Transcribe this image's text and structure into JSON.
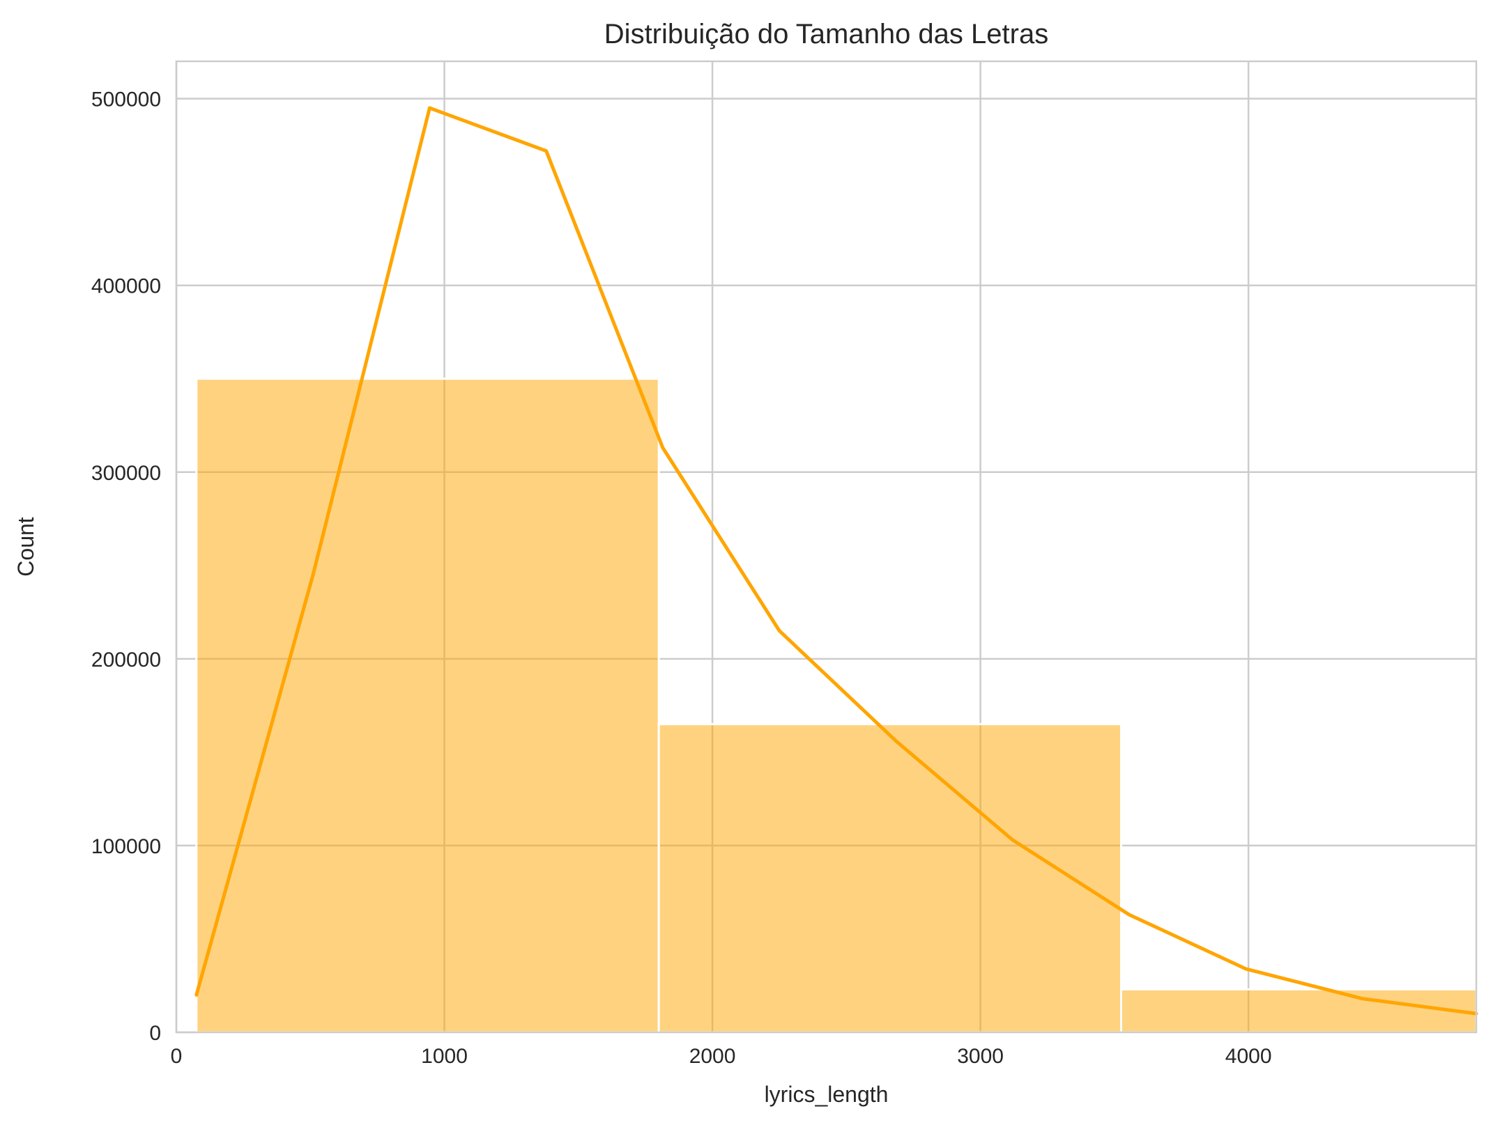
{
  "chart_data": {
    "type": "bar",
    "title": "Distribuição do Tamanho das Letras",
    "xlabel": "lyrics_length",
    "ylabel": "Count",
    "xlim": [
      0,
      4850
    ],
    "ylim": [
      0,
      520000
    ],
    "x_ticks": [
      0,
      1000,
      2000,
      3000,
      4000
    ],
    "y_ticks": [
      0,
      100000,
      200000,
      300000,
      400000,
      500000
    ],
    "grid": true,
    "color": "#ffa500",
    "bins": [
      {
        "x0": 75,
        "x1": 1800,
        "count": 350000
      },
      {
        "x0": 1800,
        "x1": 3525,
        "count": 165000
      },
      {
        "x0": 3525,
        "x1": 4850,
        "count": 23000
      }
    ],
    "kde": {
      "x": [
        75,
        510,
        945,
        1380,
        1815,
        2250,
        2685,
        3120,
        3555,
        3990,
        4425,
        4850
      ],
      "y": [
        20000,
        245000,
        495000,
        472000,
        313000,
        215000,
        156000,
        103000,
        63000,
        34000,
        18000,
        10000
      ]
    }
  }
}
